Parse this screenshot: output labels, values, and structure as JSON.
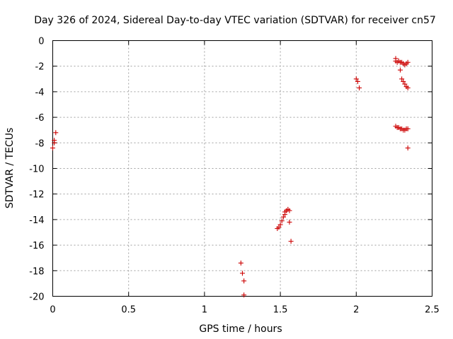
{
  "chart_data": {
    "type": "scatter",
    "title": "Day 326 of 2024, Sidereal Day-to-day VTEC variation (SDTVAR) for receiver cn57",
    "xlabel": "GPS time / hours",
    "ylabel": "SDTVAR / TECUs",
    "xlim": [
      0,
      2.5
    ],
    "ylim": [
      -20,
      0
    ],
    "x_ticks": [
      0,
      0.5,
      1,
      1.5,
      2,
      2.5
    ],
    "x_tick_labels": [
      "0",
      "0.5",
      "1",
      "1.5",
      "2",
      "2.5"
    ],
    "y_ticks": [
      0,
      -2,
      -4,
      -6,
      -8,
      -10,
      -12,
      -14,
      -16,
      -18,
      -20
    ],
    "y_tick_labels": [
      "0",
      "-2",
      "-4",
      "-6",
      "-8",
      "-10",
      "-12",
      "-14",
      "-16",
      "-18",
      "-20"
    ],
    "grid": true,
    "marker": "+",
    "series": [
      {
        "name": "SDTVAR",
        "color": "#cc0000",
        "points": [
          [
            0.0,
            -8.4
          ],
          [
            0.01,
            -7.8
          ],
          [
            0.01,
            -8.0
          ],
          [
            0.02,
            -7.2
          ],
          [
            1.24,
            -17.4
          ],
          [
            1.25,
            -18.2
          ],
          [
            1.26,
            -18.8
          ],
          [
            1.26,
            -19.9
          ],
          [
            1.48,
            -14.7
          ],
          [
            1.49,
            -14.6
          ],
          [
            1.5,
            -14.4
          ],
          [
            1.51,
            -14.1
          ],
          [
            1.52,
            -13.8
          ],
          [
            1.53,
            -13.6
          ],
          [
            1.53,
            -13.4
          ],
          [
            1.54,
            -13.3
          ],
          [
            1.55,
            -13.2
          ],
          [
            1.56,
            -13.3
          ],
          [
            1.56,
            -14.2
          ],
          [
            1.57,
            -15.7
          ],
          [
            2.0,
            -3.0
          ],
          [
            2.01,
            -3.2
          ],
          [
            2.02,
            -3.7
          ],
          [
            2.26,
            -1.4
          ],
          [
            2.26,
            -1.6
          ],
          [
            2.27,
            -1.7
          ],
          [
            2.28,
            -1.6
          ],
          [
            2.29,
            -1.7
          ],
          [
            2.29,
            -2.3
          ],
          [
            2.3,
            -1.7
          ],
          [
            2.31,
            -1.8
          ],
          [
            2.32,
            -1.9
          ],
          [
            2.33,
            -1.8
          ],
          [
            2.34,
            -1.7
          ],
          [
            2.3,
            -3.0
          ],
          [
            2.31,
            -3.2
          ],
          [
            2.32,
            -3.4
          ],
          [
            2.33,
            -3.6
          ],
          [
            2.34,
            -3.7
          ],
          [
            2.26,
            -6.7
          ],
          [
            2.27,
            -6.8
          ],
          [
            2.28,
            -6.8
          ],
          [
            2.29,
            -6.9
          ],
          [
            2.3,
            -6.9
          ],
          [
            2.31,
            -7.0
          ],
          [
            2.32,
            -7.0
          ],
          [
            2.33,
            -6.9
          ],
          [
            2.34,
            -6.9
          ],
          [
            2.34,
            -8.4
          ]
        ]
      }
    ]
  }
}
